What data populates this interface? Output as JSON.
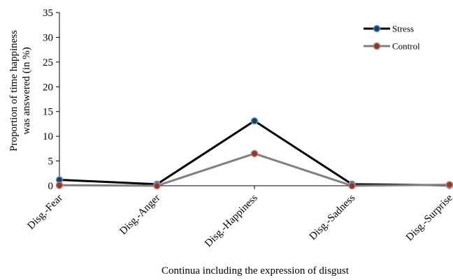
{
  "chart_data": {
    "type": "line",
    "title": "",
    "xlabel": "Continua including the expression of disgust",
    "ylabel": [
      "Proportion of time happiness",
      "was answered (in %)"
    ],
    "categories": [
      "Disg.-Fear",
      "Disg.-Anger",
      "Disg.-Happiness",
      "Disg.-Sadness",
      "Disg.-Surprise"
    ],
    "ylim": [
      0,
      35
    ],
    "yticks": [
      "0",
      "5",
      "10",
      "15",
      "20",
      "25",
      "30",
      "35"
    ],
    "grid": false,
    "legend_position": "top-right",
    "series": [
      {
        "name": "Stress",
        "values": [
          1.2,
          0.3,
          13.1,
          0.3,
          0.1
        ],
        "line_color": "#000000",
        "marker_color": "#1f3a5f",
        "marker_edge": "#4da3d9"
      },
      {
        "name": "Control",
        "values": [
          0.1,
          0.0,
          6.5,
          0.0,
          0.2
        ],
        "line_color": "#808080",
        "marker_color": "#8b3a2e",
        "marker_edge": "#c87a6a"
      }
    ]
  }
}
